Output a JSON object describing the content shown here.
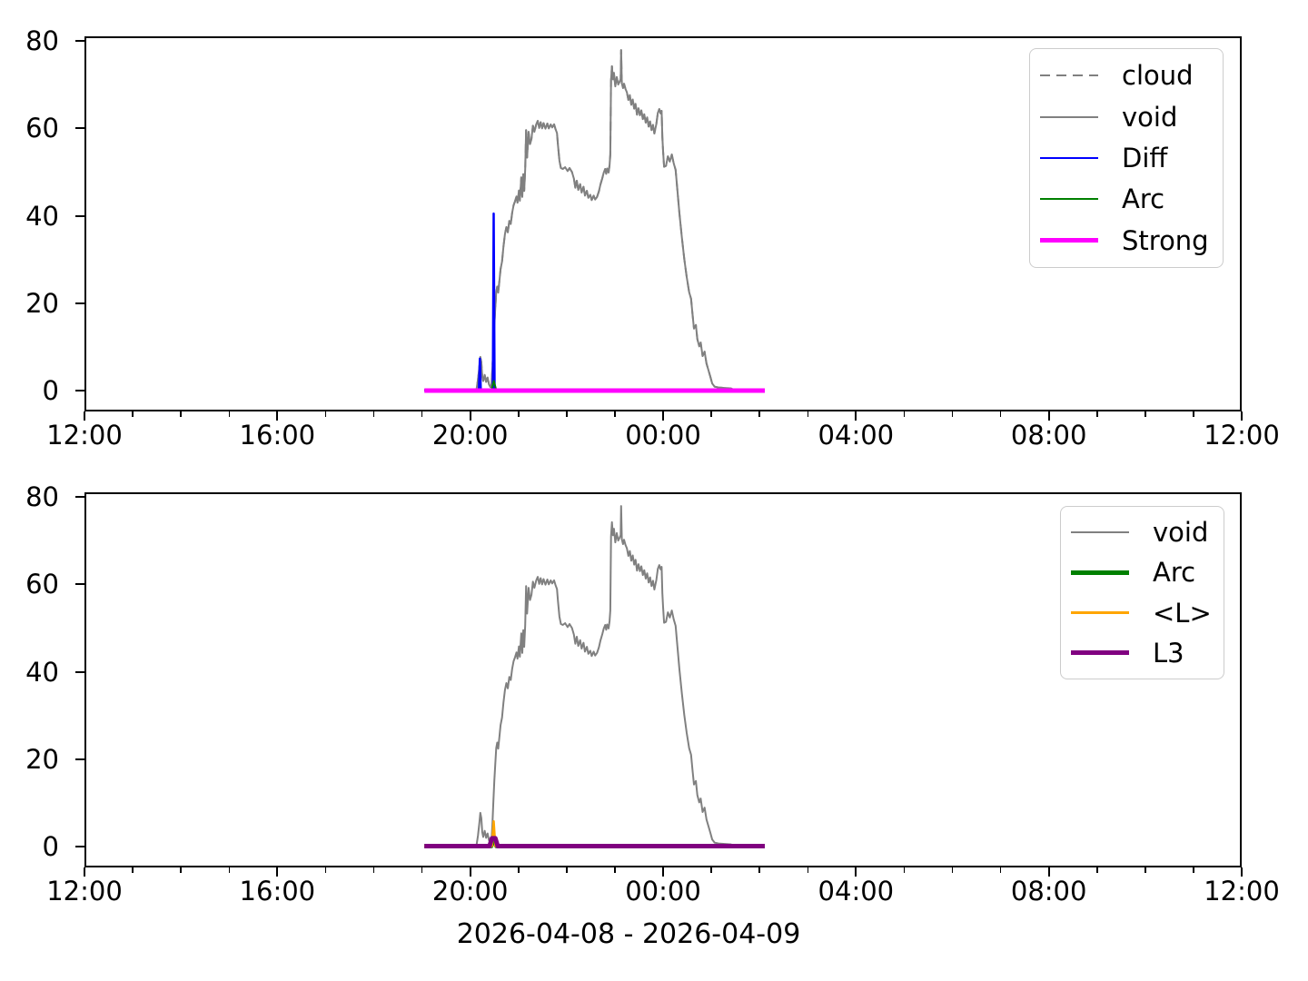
{
  "figure": {
    "xlabel": "2026-04-08 - 2026-04-09",
    "background": "#ffffff"
  },
  "colors": {
    "gray": "#808080",
    "blue": "#0000ff",
    "green": "#008000",
    "magenta": "#ff00ff",
    "orange": "#ffa500",
    "purple": "#800080",
    "frame": "#000000",
    "legend_border": "#cccccc"
  },
  "axes": {
    "x_range": [
      "12:00",
      "12:00 next day"
    ],
    "x_ticks": [
      {
        "hours": 0,
        "label": "12:00"
      },
      {
        "hours": 4,
        "label": "16:00"
      },
      {
        "hours": 8,
        "label": "20:00"
      },
      {
        "hours": 12,
        "label": "00:00"
      },
      {
        "hours": 16,
        "label": "04:00"
      },
      {
        "hours": 20,
        "label": "08:00"
      },
      {
        "hours": 24,
        "label": "12:00"
      }
    ],
    "x_minor_hours": [
      1,
      2,
      3,
      5,
      6,
      7,
      9,
      10,
      11,
      13,
      14,
      15,
      17,
      18,
      19,
      21,
      22,
      23
    ],
    "y_ticks": [
      {
        "value": 0,
        "label": "0"
      },
      {
        "value": 20,
        "label": "20"
      },
      {
        "value": 40,
        "label": "40"
      },
      {
        "value": 60,
        "label": "60"
      },
      {
        "value": 80,
        "label": "80"
      }
    ],
    "ylim_display": [
      -4.8,
      81.0
    ]
  },
  "chart_data": [
    {
      "type": "line",
      "panel": "panel-top",
      "title": "",
      "xlabel": "",
      "ylabel": "",
      "x_unit": "hours after 12:00 on 2026-04-08",
      "legend_position": "upper right",
      "legend_entries": [
        {
          "label": "cloud",
          "points_key": "void",
          "color_key": "gray",
          "width": 2,
          "dash": true,
          "note": "coincides with void curve, hidden beneath it"
        },
        {
          "label": "void",
          "points_key": "void",
          "color_key": "gray",
          "width": 2,
          "dash": false
        },
        {
          "label": "Diff",
          "points_key": "diff",
          "color_key": "blue",
          "width": 2.5,
          "dash": false
        },
        {
          "label": "Arc",
          "points_key": "arc",
          "color_key": "green",
          "width": 2,
          "dash": false
        },
        {
          "label": "Strong",
          "points_key": "strong",
          "color_key": "magenta",
          "width": 5,
          "dash": false
        }
      ]
    },
    {
      "type": "line",
      "panel": "panel-bottom",
      "title": "",
      "xlabel": "2026-04-08 - 2026-04-09",
      "ylabel": "",
      "x_unit": "hours after 12:00 on 2026-04-08",
      "legend_position": "upper right",
      "legend_entries": [
        {
          "label": "void",
          "points_key": "void",
          "color_key": "gray",
          "width": 2,
          "dash": false
        },
        {
          "label": "Arc",
          "points_key": "arc",
          "color_key": "green",
          "width": 4.5,
          "dash": false
        },
        {
          "label": "<L>",
          "points_key": "l_mean",
          "color_key": "orange",
          "width": 2.5,
          "dash": false
        },
        {
          "label": "L3",
          "points_key": "l3",
          "color_key": "purple",
          "width": 5,
          "dash": false
        }
      ]
    }
  ],
  "series_points": {
    "void": [
      [
        7.05,
        0
      ],
      [
        7.6,
        0
      ],
      [
        8.05,
        0
      ],
      [
        8.13,
        0.3
      ],
      [
        8.16,
        2.5
      ],
      [
        8.19,
        5.5
      ],
      [
        8.21,
        7.7
      ],
      [
        8.23,
        6.5
      ],
      [
        8.25,
        3.3
      ],
      [
        8.27,
        2.2
      ],
      [
        8.3,
        3.6
      ],
      [
        8.33,
        2.0
      ],
      [
        8.36,
        3.0
      ],
      [
        8.39,
        1.4
      ],
      [
        8.42,
        0.8
      ],
      [
        8.44,
        1.2
      ],
      [
        8.46,
        5
      ],
      [
        8.48,
        10
      ],
      [
        8.5,
        15
      ],
      [
        8.52,
        19
      ],
      [
        8.54,
        22.5
      ],
      [
        8.56,
        23.8
      ],
      [
        8.58,
        22.4
      ],
      [
        8.61,
        25.5
      ],
      [
        8.63,
        27.8
      ],
      [
        8.66,
        29.5
      ],
      [
        8.69,
        33
      ],
      [
        8.72,
        35.8
      ],
      [
        8.75,
        37.4
      ],
      [
        8.78,
        36.2
      ],
      [
        8.81,
        38.8
      ],
      [
        8.84,
        38.1
      ],
      [
        8.87,
        40.6
      ],
      [
        8.9,
        42.4
      ],
      [
        8.93,
        43.3
      ],
      [
        8.96,
        44.4
      ],
      [
        8.98,
        43.0
      ],
      [
        9.01,
        45.8
      ],
      [
        9.03,
        43.4
      ],
      [
        9.06,
        48.8
      ],
      [
        9.08,
        44.3
      ],
      [
        9.1,
        49.5
      ],
      [
        9.12,
        45.7
      ],
      [
        9.14,
        50.6
      ],
      [
        9.16,
        59.6
      ],
      [
        9.18,
        53.3
      ],
      [
        9.21,
        59.2
      ],
      [
        9.24,
        56.4
      ],
      [
        9.27,
        57.6
      ],
      [
        9.3,
        60.6
      ],
      [
        9.33,
        59.2
      ],
      [
        9.37,
        60.9
      ],
      [
        9.4,
        61.7
      ],
      [
        9.43,
        60.1
      ],
      [
        9.46,
        61.4
      ],
      [
        9.49,
        60.0
      ],
      [
        9.52,
        61.2
      ],
      [
        9.56,
        59.9
      ],
      [
        9.6,
        61.1
      ],
      [
        9.63,
        60.0
      ],
      [
        9.67,
        60.9
      ],
      [
        9.7,
        60.2
      ],
      [
        9.74,
        60.9
      ],
      [
        9.77,
        59.8
      ],
      [
        9.8,
        58.9
      ],
      [
        9.82,
        56.1
      ],
      [
        9.85,
        52.6
      ],
      [
        9.88,
        50.9
      ],
      [
        9.92,
        50.7
      ],
      [
        9.97,
        51.1
      ],
      [
        10.02,
        50.2
      ],
      [
        10.06,
        50.9
      ],
      [
        10.11,
        50.0
      ],
      [
        10.15,
        48.5
      ],
      [
        10.18,
        46.4
      ],
      [
        10.21,
        48.0
      ],
      [
        10.24,
        45.9
      ],
      [
        10.28,
        47.2
      ],
      [
        10.31,
        45.3
      ],
      [
        10.35,
        46.6
      ],
      [
        10.38,
        44.6
      ],
      [
        10.42,
        45.7
      ],
      [
        10.45,
        44.1
      ],
      [
        10.49,
        44.8
      ],
      [
        10.52,
        43.6
      ],
      [
        10.56,
        44.6
      ],
      [
        10.59,
        43.7
      ],
      [
        10.63,
        44.3
      ],
      [
        10.67,
        45.6
      ],
      [
        10.7,
        47.1
      ],
      [
        10.74,
        48.6
      ],
      [
        10.77,
        49.9
      ],
      [
        10.8,
        50.7
      ],
      [
        10.82,
        49.6
      ],
      [
        10.84,
        50.8
      ],
      [
        10.87,
        49.9
      ],
      [
        10.89,
        51.6
      ],
      [
        10.905,
        54
      ],
      [
        10.92,
        71
      ],
      [
        10.94,
        74.2
      ],
      [
        10.96,
        71.2
      ],
      [
        10.98,
        72.7
      ],
      [
        11.01,
        69.6
      ],
      [
        11.04,
        71.7
      ],
      [
        11.07,
        70.0
      ],
      [
        11.1,
        70.7
      ],
      [
        11.12,
        71.2
      ],
      [
        11.13,
        77.9
      ],
      [
        11.145,
        70.3
      ],
      [
        11.17,
        69.2
      ],
      [
        11.19,
        70.2
      ],
      [
        11.22,
        69.0
      ],
      [
        11.25,
        68.2
      ],
      [
        11.28,
        66.5
      ],
      [
        11.31,
        67.6
      ],
      [
        11.34,
        65.4
      ],
      [
        11.37,
        66.6
      ],
      [
        11.4,
        64.5
      ],
      [
        11.43,
        65.6
      ],
      [
        11.46,
        63.1
      ],
      [
        11.49,
        64.6
      ],
      [
        11.52,
        63.0
      ],
      [
        11.55,
        64.1
      ],
      [
        11.58,
        62.1
      ],
      [
        11.61,
        63.2
      ],
      [
        11.64,
        61.3
      ],
      [
        11.67,
        62.5
      ],
      [
        11.7,
        60.4
      ],
      [
        11.73,
        61.6
      ],
      [
        11.76,
        59.6
      ],
      [
        11.79,
        60.8
      ],
      [
        11.82,
        58.8
      ],
      [
        11.86,
        61.0
      ],
      [
        11.89,
        63.5
      ],
      [
        11.92,
        64.4
      ],
      [
        11.95,
        63.4
      ],
      [
        11.97,
        64.0
      ],
      [
        11.985,
        58
      ],
      [
        12.0,
        54.8
      ],
      [
        12.02,
        51.2
      ],
      [
        12.06,
        51.4
      ],
      [
        12.1,
        53.6
      ],
      [
        12.14,
        52.4
      ],
      [
        12.18,
        54.0
      ],
      [
        12.22,
        52.0
      ],
      [
        12.26,
        50.5
      ],
      [
        12.3,
        45.5
      ],
      [
        12.34,
        40.5
      ],
      [
        12.39,
        35
      ],
      [
        12.44,
        30
      ],
      [
        12.49,
        26
      ],
      [
        12.54,
        22.5
      ],
      [
        12.58,
        21.0
      ],
      [
        12.61,
        17.5
      ],
      [
        12.64,
        14.2
      ],
      [
        12.68,
        15.0
      ],
      [
        12.71,
        11.8
      ],
      [
        12.75,
        10.1
      ],
      [
        12.78,
        11.0
      ],
      [
        12.82,
        7.9
      ],
      [
        12.86,
        8.9
      ],
      [
        12.9,
        6.2
      ],
      [
        12.94,
        4.7
      ],
      [
        12.98,
        3.2
      ],
      [
        13.02,
        1.6
      ],
      [
        13.07,
        0.9
      ],
      [
        13.15,
        0.7
      ],
      [
        13.28,
        0.6
      ],
      [
        13.41,
        0.5
      ],
      [
        13.46,
        0.2
      ],
      [
        13.7,
        0.1
      ],
      [
        14.11,
        0.1
      ]
    ],
    "diff": [
      [
        7.05,
        0.1
      ],
      [
        8.18,
        0.1
      ],
      [
        8.2,
        7.3
      ],
      [
        8.22,
        0.1
      ],
      [
        8.47,
        0.1
      ],
      [
        8.487,
        40.5
      ],
      [
        8.505,
        0.1
      ],
      [
        14.11,
        0.1
      ]
    ],
    "arc": [
      [
        7.05,
        0.1
      ],
      [
        8.44,
        0.1
      ],
      [
        8.49,
        2.2
      ],
      [
        8.54,
        0.1
      ],
      [
        14.11,
        0.1
      ]
    ],
    "strong": [
      [
        7.05,
        0
      ],
      [
        14.11,
        0
      ]
    ],
    "l_mean": [
      [
        7.05,
        0.1
      ],
      [
        8.45,
        0.1
      ],
      [
        8.487,
        5.8
      ],
      [
        8.52,
        0.1
      ],
      [
        14.11,
        0.1
      ]
    ],
    "l3": [
      [
        7.05,
        0.1
      ],
      [
        8.4,
        0.1
      ],
      [
        8.45,
        1.9
      ],
      [
        8.52,
        1.9
      ],
      [
        8.57,
        0.1
      ],
      [
        14.11,
        0.1
      ]
    ]
  }
}
